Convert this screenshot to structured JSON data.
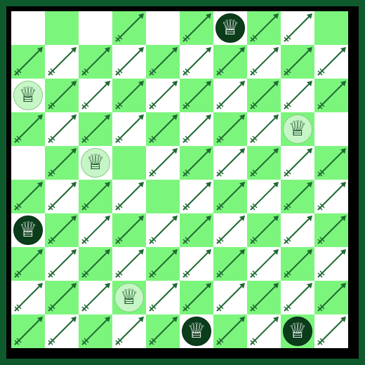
{
  "board": {
    "size": 10,
    "colors": {
      "light_square": "#ffffff",
      "green_square": "#7cf57c",
      "arrow": "#1f6a32",
      "frame": "#0e5a2c",
      "border": "#000000",
      "dark_queen_bg": "#0b3d1b",
      "light_queen_bg": "#c6f5c6"
    },
    "queen_glyph": "♕",
    "queens": [
      {
        "row": 0,
        "col": 6,
        "color": "dark"
      },
      {
        "row": 2,
        "col": 0,
        "color": "light"
      },
      {
        "row": 3,
        "col": 8,
        "color": "light"
      },
      {
        "row": 4,
        "col": 2,
        "color": "light"
      },
      {
        "row": 6,
        "col": 0,
        "color": "dark"
      },
      {
        "row": 8,
        "col": 3,
        "color": "light"
      },
      {
        "row": 9,
        "col": 5,
        "color": "dark"
      },
      {
        "row": 9,
        "col": 8,
        "color": "dark"
      }
    ],
    "arrow_rows": [
      [
        0,
        0,
        0,
        1,
        0,
        1,
        0,
        1,
        1,
        0
      ],
      [
        1,
        1,
        1,
        1,
        1,
        1,
        1,
        1,
        1,
        1
      ],
      [
        0,
        1,
        1,
        1,
        1,
        1,
        1,
        1,
        1,
        1
      ],
      [
        1,
        1,
        1,
        1,
        1,
        1,
        1,
        1,
        1,
        0
      ],
      [
        0,
        1,
        0,
        0,
        1,
        1,
        1,
        1,
        1,
        1
      ],
      [
        1,
        1,
        1,
        1,
        0,
        1,
        1,
        1,
        1,
        1
      ],
      [
        0,
        1,
        1,
        1,
        1,
        1,
        1,
        1,
        1,
        1
      ],
      [
        1,
        1,
        1,
        1,
        1,
        1,
        1,
        1,
        1,
        1
      ],
      [
        1,
        1,
        1,
        0,
        1,
        1,
        1,
        1,
        1,
        1
      ],
      [
        1,
        1,
        1,
        1,
        1,
        0,
        1,
        1,
        0,
        1
      ]
    ]
  }
}
